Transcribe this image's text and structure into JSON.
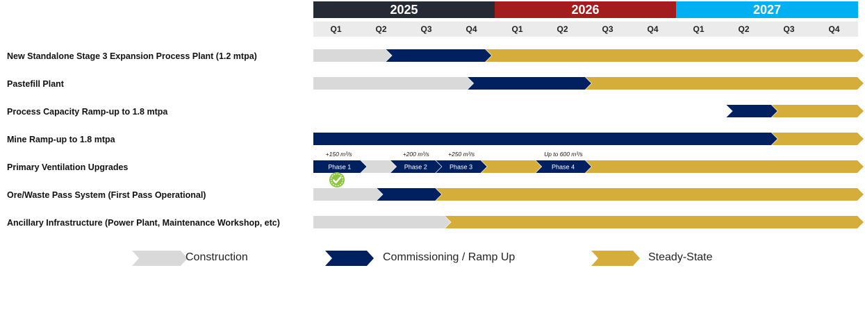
{
  "years": [
    {
      "label": "2025",
      "color": "#262a35"
    },
    {
      "label": "2026",
      "color": "#a31d1e"
    },
    {
      "label": "2027",
      "color": "#00b0f0"
    }
  ],
  "quarters": [
    "Q1",
    "Q2",
    "Q3",
    "Q4",
    "Q1",
    "Q2",
    "Q3",
    "Q4",
    "Q1",
    "Q2",
    "Q3",
    "Q4"
  ],
  "colors": {
    "construction": "#d9d9d9",
    "commissioning": "#002060",
    "steady": "#d4ad3a"
  },
  "rows": [
    {
      "label": "New Standalone Stage 3 Expansion Process Plant (1.2 mtpa)",
      "segments": [
        {
          "type": "construction",
          "start": 0,
          "end": 1.6
        },
        {
          "type": "commissioning",
          "start": 1.6,
          "end": 3.8
        },
        {
          "type": "steady",
          "start": 3.8,
          "end": 12
        }
      ]
    },
    {
      "label": "Pastefill Plant",
      "segments": [
        {
          "type": "construction",
          "start": 0,
          "end": 3.4
        },
        {
          "type": "commissioning",
          "start": 3.4,
          "end": 6.0
        },
        {
          "type": "steady",
          "start": 6.0,
          "end": 12
        }
      ]
    },
    {
      "label": "Process Capacity Ramp-up to 1.8 mtpa",
      "segments": [
        {
          "type": "commissioning",
          "start": 9.1,
          "end": 10.1
        },
        {
          "type": "steady",
          "start": 10.1,
          "end": 12
        }
      ]
    },
    {
      "label": "Mine Ramp-up to 1.8 mtpa",
      "segments": [
        {
          "type": "commissioning",
          "start": 0,
          "end": 10.1
        },
        {
          "type": "steady",
          "start": 10.1,
          "end": 12
        }
      ]
    },
    {
      "label": "Primary Ventilation Upgrades",
      "segments": [
        {
          "type": "commissioning",
          "start": 0,
          "end": 1.05,
          "phase": "Phase 1"
        },
        {
          "type": "construction",
          "start": 1.05,
          "end": 1.7
        },
        {
          "type": "commissioning",
          "start": 1.7,
          "end": 2.7,
          "phase": "Phase 2"
        },
        {
          "type": "commissioning",
          "start": 2.7,
          "end": 3.7,
          "phase": "Phase 3"
        },
        {
          "type": "steady",
          "start": 3.7,
          "end": 4.9
        },
        {
          "type": "commissioning",
          "start": 4.9,
          "end": 6.0,
          "phase": "Phase 4"
        },
        {
          "type": "steady",
          "start": 6.0,
          "end": 12
        }
      ]
    },
    {
      "label": "Ore/Waste Pass System (First Pass Operational)",
      "segments": [
        {
          "type": "construction",
          "start": 0,
          "end": 1.4
        },
        {
          "type": "commissioning",
          "start": 1.4,
          "end": 2.7
        },
        {
          "type": "steady",
          "start": 2.7,
          "end": 12
        }
      ]
    },
    {
      "label": "Ancillary Infrastructure (Power Plant, Maintenance Workshop, etc)",
      "segments": [
        {
          "type": "construction",
          "start": 0,
          "end": 2.9
        },
        {
          "type": "steady",
          "start": 2.9,
          "end": 12
        }
      ]
    }
  ],
  "ventilation_notes": [
    {
      "text": "+150 m³/s",
      "at": 0.5
    },
    {
      "text": "+200 m³/s",
      "at": 2.2
    },
    {
      "text": "+250 m³/s",
      "at": 3.2
    },
    {
      "text": "Up to 600 m³/s",
      "at": 5.45
    }
  ],
  "legend": {
    "construction": "Construction",
    "commissioning": "Commissioning / Ramp Up",
    "steady": "Steady-State"
  },
  "icons": {
    "milestone": "check-badge-icon"
  }
}
